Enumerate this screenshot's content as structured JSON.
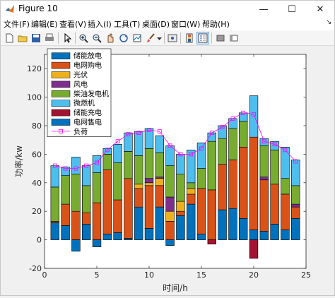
{
  "window": {
    "title": "Figure 10",
    "minimize_glyph": "—",
    "maximize_glyph": "☐",
    "close_glyph": "✕"
  },
  "menu": {
    "items": [
      {
        "label": "文件(F)"
      },
      {
        "label": "编辑(E)"
      },
      {
        "label": "查看(V)"
      },
      {
        "label": "插入(I)"
      },
      {
        "label": "工具(T)"
      },
      {
        "label": "桌面(D)"
      },
      {
        "label": "窗口(W)"
      },
      {
        "label": "帮助(H)"
      }
    ],
    "overflow_glyph": "↘"
  },
  "toolbar": {
    "icons": [
      "new-figure-icon",
      "open-icon",
      "save-icon",
      "print-icon",
      "pointer-icon",
      "zoom-in-icon",
      "zoom-out-icon",
      "pan-icon",
      "rotate-icon",
      "data-cursor-icon",
      "brush-icon",
      "link-icon",
      "colorbar-icon",
      "legend-icon",
      "hide-plot-tools-icon",
      "show-plot-tools-icon"
    ]
  },
  "colors": {
    "storage_discharge": "#0072BD",
    "grid_buy": "#D95319",
    "pv": "#EDB120",
    "wind": "#7E2F8E",
    "diesel": "#77AC30",
    "microturbine": "#4DBEEE",
    "storage_charge": "#A2142F",
    "grid_sell": "#0072BD",
    "load": "#FF00FF"
  },
  "chart_data": {
    "type": "bar",
    "stacked": true,
    "xlabel": "时间/h",
    "ylabel": "功率/kw",
    "xlim": [
      0,
      25
    ],
    "ylim": [
      -20,
      130
    ],
    "xticks": [
      0,
      5,
      10,
      15,
      20,
      25
    ],
    "yticks": [
      -20,
      0,
      20,
      40,
      60,
      80,
      100,
      120
    ],
    "grid": false,
    "legend_position": "top-left",
    "x": [
      1,
      2,
      3,
      4,
      5,
      6,
      7,
      8,
      9,
      10,
      11,
      12,
      13,
      14,
      15,
      16,
      17,
      18,
      19,
      20,
      21,
      22,
      23,
      24
    ],
    "series": [
      {
        "name": "储能放电",
        "color_key": "storage_discharge",
        "values": [
          12,
          10,
          0,
          11,
          0,
          4,
          5,
          1,
          23,
          8,
          23,
          0,
          17,
          25,
          4,
          0,
          21,
          22,
          15,
          7,
          6,
          11,
          7,
          15
        ]
      },
      {
        "name": "电网购电",
        "color_key": "grid_buy",
        "values": [
          1,
          15,
          20,
          8,
          26,
          45,
          23,
          42,
          13,
          30,
          15,
          13,
          3,
          7,
          32,
          35,
          32,
          34,
          50,
          65,
          36,
          28,
          25,
          8
        ]
      },
      {
        "name": "光伏",
        "color_key": "pv",
        "values": [
          0,
          0,
          0,
          0,
          0,
          0,
          0,
          0,
          3,
          2,
          5,
          7,
          7,
          4,
          0,
          0,
          0,
          0,
          0,
          0,
          0,
          0,
          0,
          0
        ]
      },
      {
        "name": "风电",
        "color_key": "wind",
        "values": [
          0,
          0,
          0,
          0,
          0,
          0,
          0,
          0,
          0,
          3,
          1,
          10,
          0,
          0,
          0,
          0,
          0,
          0,
          0,
          0,
          2,
          0,
          0,
          2
        ]
      },
      {
        "name": "柴油发电机",
        "color_key": "diesel",
        "values": [
          24,
          20,
          26,
          19,
          21,
          11,
          26,
          19,
          20,
          21,
          17,
          22,
          19,
          4,
          14,
          34,
          18,
          22,
          18,
          0,
          22,
          24,
          11,
          13
        ]
      },
      {
        "name": "微燃机",
        "color_key": "microturbine",
        "values": [
          15,
          6,
          12,
          14,
          12,
          4,
          13,
          13,
          17,
          14,
          12,
          14,
          14,
          23,
          18,
          6,
          9,
          7,
          6,
          29,
          5,
          6,
          22,
          18
        ]
      },
      {
        "name": "储能充电",
        "color_key": "storage_charge",
        "values": [
          0,
          0,
          0,
          0,
          0,
          0,
          0,
          0,
          0,
          0,
          0,
          0,
          0,
          0,
          0,
          -3,
          0,
          0,
          0,
          -13,
          0,
          0,
          0,
          0
        ]
      },
      {
        "name": "电网售电",
        "color_key": "grid_sell",
        "values": [
          0,
          0,
          -8,
          0,
          -5,
          0,
          0,
          0,
          0,
          0,
          0,
          -4,
          0,
          0,
          0,
          0,
          0,
          0,
          0,
          0,
          0,
          0,
          0,
          0
        ]
      }
    ],
    "line": {
      "name": "负荷",
      "color_key": "load",
      "values": [
        52,
        50,
        50,
        52,
        54,
        63,
        69,
        74,
        75,
        77,
        76,
        66,
        60,
        60,
        64,
        75,
        79,
        85,
        89,
        88,
        69,
        67,
        63,
        55
      ]
    }
  }
}
